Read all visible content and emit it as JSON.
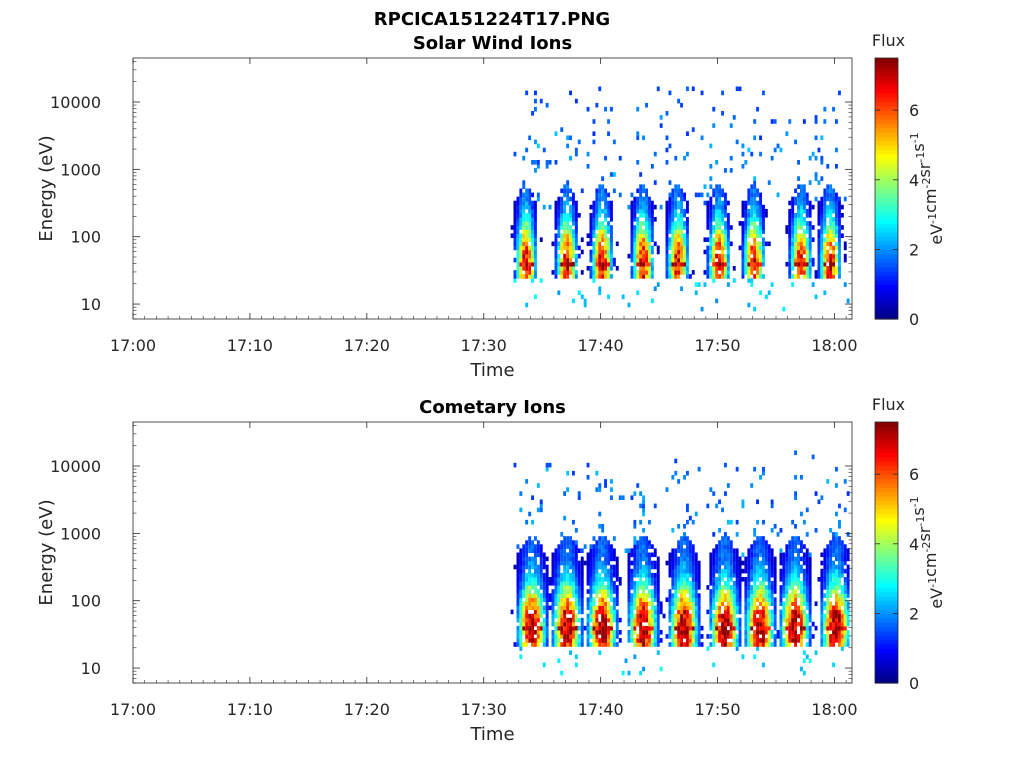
{
  "figure": {
    "title": "RPCICA151224T17.PNG"
  },
  "colors": {
    "axis": "#262626",
    "background": "#ffffff",
    "colormap": "jet"
  },
  "chart_data": [
    {
      "type": "heatmap",
      "title": "Solar Wind Ions",
      "xlabel": "Time",
      "ylabel": "Energy (eV)",
      "x_ticks": [
        "17:00",
        "17:10",
        "17:20",
        "17:30",
        "17:40",
        "17:50",
        "18:00"
      ],
      "x_tick_minutes": [
        0,
        10,
        20,
        30,
        40,
        50,
        60
      ],
      "xlim_minutes": [
        0,
        61.5
      ],
      "y_scale": "log",
      "y_ticks": [
        "10",
        "100",
        "1000",
        "10000"
      ],
      "y_tick_values": [
        10,
        100,
        1000,
        10000
      ],
      "ylim": [
        6,
        45000
      ],
      "data_start_minutes": 32.3,
      "pulse_minutes": [
        33.5,
        37.0,
        40.0,
        43.5,
        46.5,
        50.0,
        53.0,
        57.0,
        59.5
      ],
      "core_energy_eV": [
        25,
        400
      ],
      "peak_energy_eV": 40,
      "colorbar": {
        "label": "Flux",
        "unit": "eV-1cm-2sr-1s-1",
        "range": [
          0,
          7.5
        ],
        "ticks": [
          "0",
          "2",
          "4",
          "6"
        ],
        "tick_values": [
          0,
          2,
          4,
          6
        ]
      }
    },
    {
      "type": "heatmap",
      "title": "Cometary Ions",
      "xlabel": "Time",
      "ylabel": "Energy (eV)",
      "x_ticks": [
        "17:00",
        "17:10",
        "17:20",
        "17:30",
        "17:40",
        "17:50",
        "18:00"
      ],
      "x_tick_minutes": [
        0,
        10,
        20,
        30,
        40,
        50,
        60
      ],
      "xlim_minutes": [
        0,
        61.5
      ],
      "y_scale": "log",
      "y_ticks": [
        "10",
        "100",
        "1000",
        "10000"
      ],
      "y_tick_values": [
        10,
        100,
        1000,
        10000
      ],
      "ylim": [
        6,
        45000
      ],
      "data_start_minutes": 32.3,
      "pulse_minutes": [
        34.0,
        37.0,
        40.0,
        43.5,
        47.0,
        50.5,
        53.5,
        56.5,
        60.0
      ],
      "core_energy_eV": [
        20,
        600
      ],
      "peak_energy_eV": 40,
      "colorbar": {
        "label": "Flux",
        "unit": "eV-1cm-2sr-1s-1",
        "range": [
          0,
          7.5
        ],
        "ticks": [
          "0",
          "2",
          "4",
          "6"
        ],
        "tick_values": [
          0,
          2,
          4,
          6
        ]
      }
    }
  ]
}
